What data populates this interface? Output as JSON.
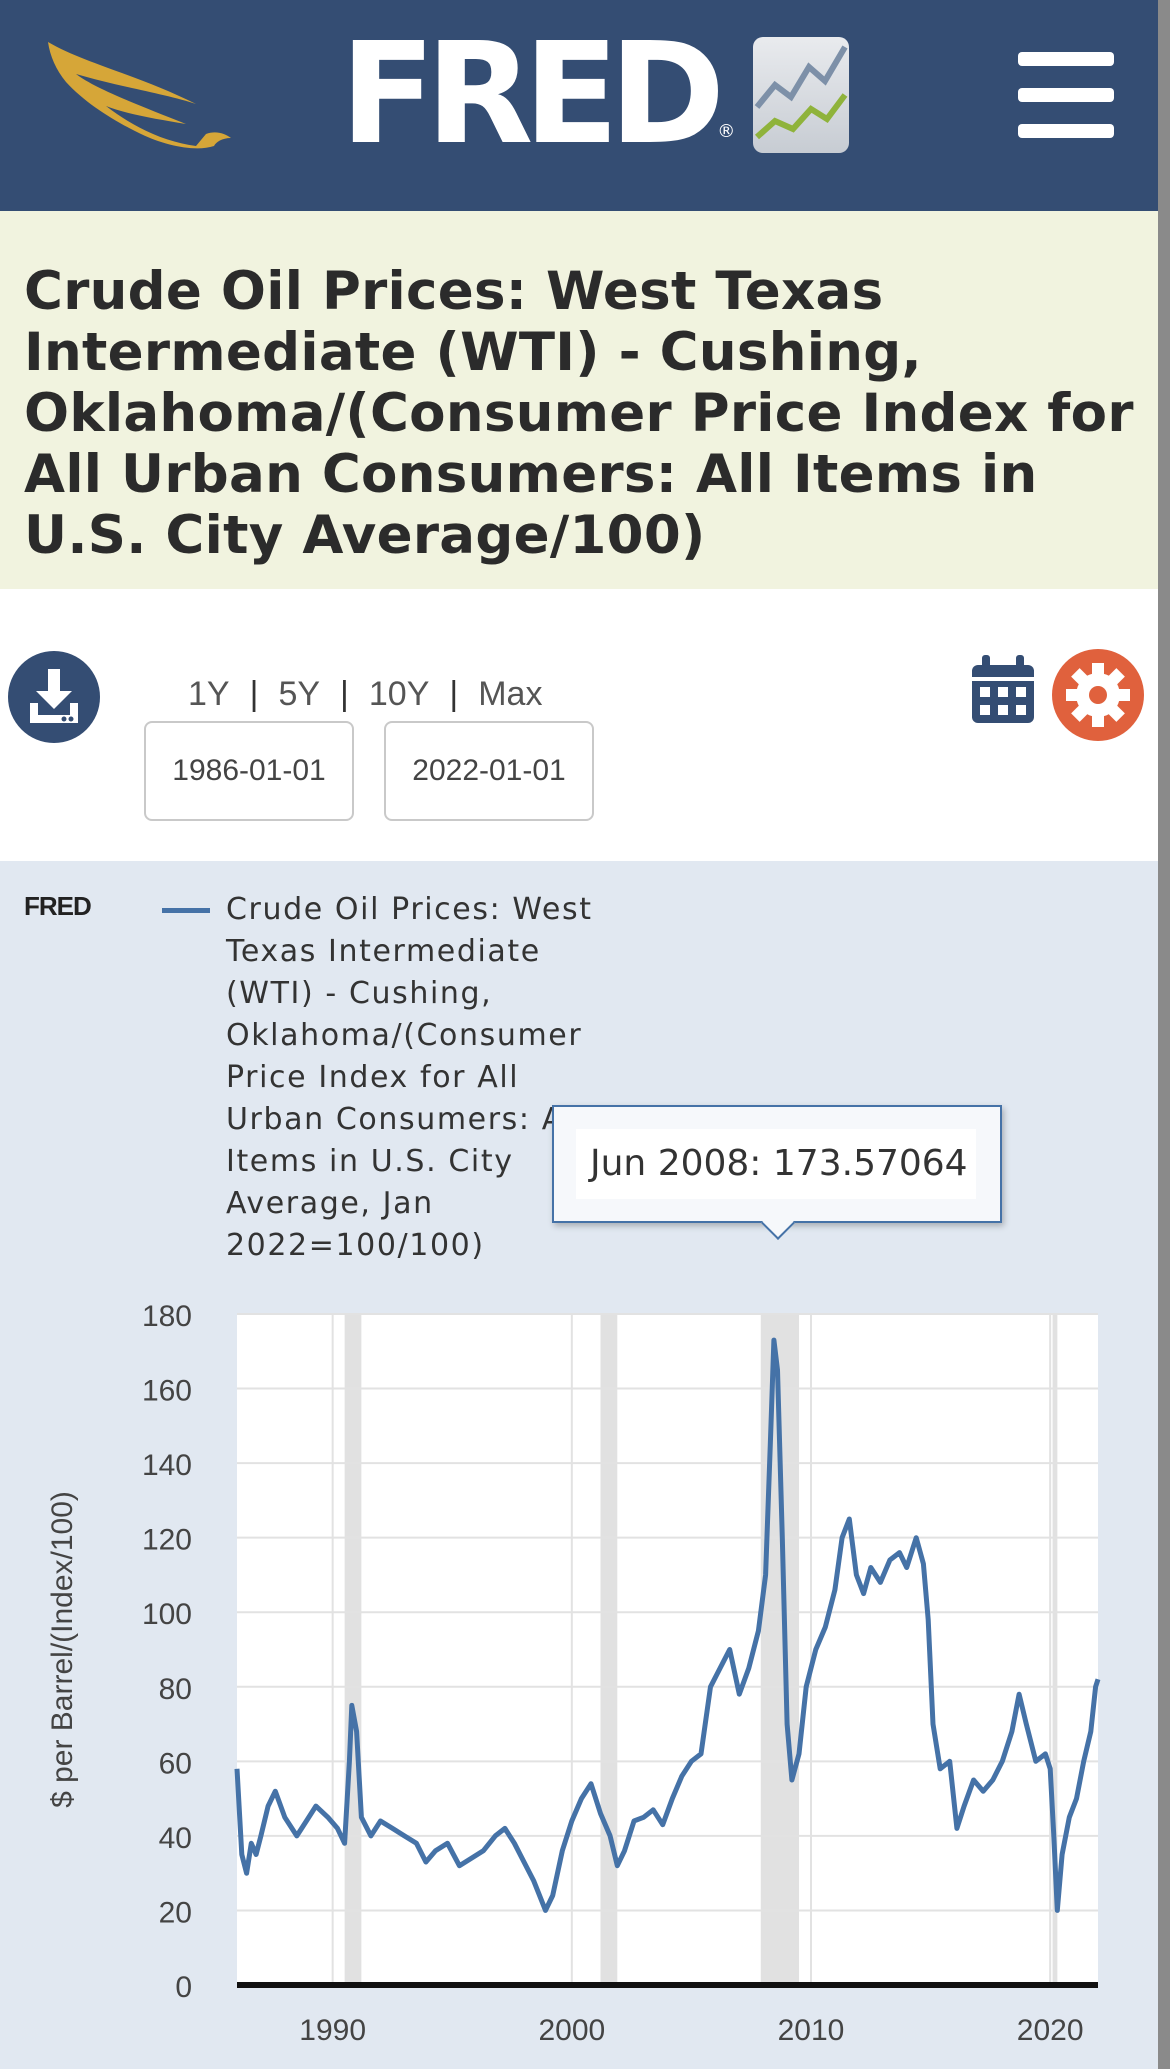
{
  "header": {
    "logo_text": "FRED",
    "logo_mark": "®",
    "menu_icon": "hamburger-icon",
    "colors": {
      "bar": "#344d73",
      "eagle": "#d6a638"
    }
  },
  "series_title": "Crude Oil Prices: West Texas Intermediate (WTI) - Cushing, Oklahoma/(Consumer Price Index for All Urban Consumers: All Items in U.S. City Average/100)",
  "controls": {
    "download_icon": "download-icon",
    "ranges": [
      "1Y",
      "5Y",
      "10Y",
      "Max"
    ],
    "start_date": "1986-01-01",
    "end_date": "2022-01-01",
    "calendar_icon": "calendar-icon",
    "settings_icon": "gear-icon",
    "settings_color": "#e0613d"
  },
  "chart_panel": {
    "brand": "FRED",
    "legend_label": "Crude Oil Prices: West Texas Intermediate (WTI) - Cushing, Oklahoma/(Consumer Price Index for All Urban Consumers: All Items in U.S. City Average, Jan 2022=100/100)",
    "tooltip": {
      "date": "Jun 2008:",
      "value": "173.57064"
    }
  },
  "chart_data": {
    "type": "line",
    "title": "",
    "xlabel": "",
    "ylabel": "$ per Barrel/(Index/100)",
    "ylim": [
      0,
      180
    ],
    "yticks": [
      0,
      20,
      40,
      60,
      80,
      100,
      120,
      140,
      160,
      180
    ],
    "xlim": [
      1986.0,
      2022.0
    ],
    "xticks": [
      1990,
      2000,
      2010,
      2020
    ],
    "grid": true,
    "legend": "top-left",
    "line_color": "#4572a7",
    "recessions": [
      [
        1990.5,
        1991.2
      ],
      [
        2001.2,
        2001.9
      ],
      [
        2007.9,
        2009.5
      ],
      [
        2020.1,
        2020.3
      ]
    ],
    "series": [
      {
        "name": "Crude Oil Prices: West Texas Intermediate (WTI) - Cushing, Oklahoma/(Consumer Price Index for All Urban Consumers: All Items in U.S. City Average, Jan 2022=100/100)",
        "x": [
          1986.0,
          1986.2,
          1986.4,
          1986.6,
          1986.8,
          1987.0,
          1987.3,
          1987.6,
          1988.0,
          1988.5,
          1988.9,
          1989.3,
          1989.8,
          1990.2,
          1990.5,
          1990.7,
          1990.8,
          1991.0,
          1991.2,
          1991.6,
          1992.0,
          1992.5,
          1993.0,
          1993.5,
          1993.9,
          1994.3,
          1994.8,
          1995.3,
          1995.8,
          1996.3,
          1996.8,
          1997.2,
          1997.6,
          1998.0,
          1998.4,
          1998.9,
          1999.2,
          1999.6,
          2000.0,
          2000.4,
          2000.8,
          2001.2,
          2001.6,
          2001.9,
          2002.2,
          2002.6,
          2003.0,
          2003.4,
          2003.8,
          2004.2,
          2004.6,
          2005.0,
          2005.4,
          2005.8,
          2006.2,
          2006.6,
          2007.0,
          2007.4,
          2007.8,
          2008.1,
          2008.3,
          2008.45,
          2008.6,
          2008.8,
          2009.0,
          2009.2,
          2009.5,
          2009.8,
          2010.2,
          2010.6,
          2011.0,
          2011.3,
          2011.6,
          2011.9,
          2012.2,
          2012.5,
          2012.9,
          2013.3,
          2013.7,
          2014.0,
          2014.4,
          2014.7,
          2014.9,
          2015.1,
          2015.4,
          2015.8,
          2016.1,
          2016.4,
          2016.8,
          2017.2,
          2017.6,
          2018.0,
          2018.4,
          2018.7,
          2019.0,
          2019.4,
          2019.8,
          2020.0,
          2020.15,
          2020.3,
          2020.5,
          2020.8,
          2021.1,
          2021.4,
          2021.7,
          2021.9,
          2022.0
        ],
        "values": [
          58,
          35,
          30,
          38,
          35,
          40,
          48,
          52,
          45,
          40,
          44,
          48,
          45,
          42,
          38,
          60,
          75,
          68,
          45,
          40,
          44,
          42,
          40,
          38,
          33,
          36,
          38,
          32,
          34,
          36,
          40,
          42,
          38,
          33,
          28,
          20,
          24,
          36,
          44,
          50,
          54,
          46,
          40,
          32,
          36,
          44,
          45,
          47,
          43,
          50,
          56,
          60,
          62,
          80,
          85,
          90,
          78,
          85,
          95,
          110,
          145,
          173,
          165,
          120,
          70,
          55,
          62,
          80,
          90,
          96,
          106,
          120,
          125,
          110,
          105,
          112,
          108,
          114,
          116,
          112,
          120,
          113,
          98,
          70,
          58,
          60,
          42,
          48,
          55,
          52,
          55,
          60,
          68,
          78,
          70,
          60,
          62,
          58,
          40,
          20,
          35,
          45,
          50,
          60,
          68,
          80,
          82
        ]
      }
    ]
  }
}
